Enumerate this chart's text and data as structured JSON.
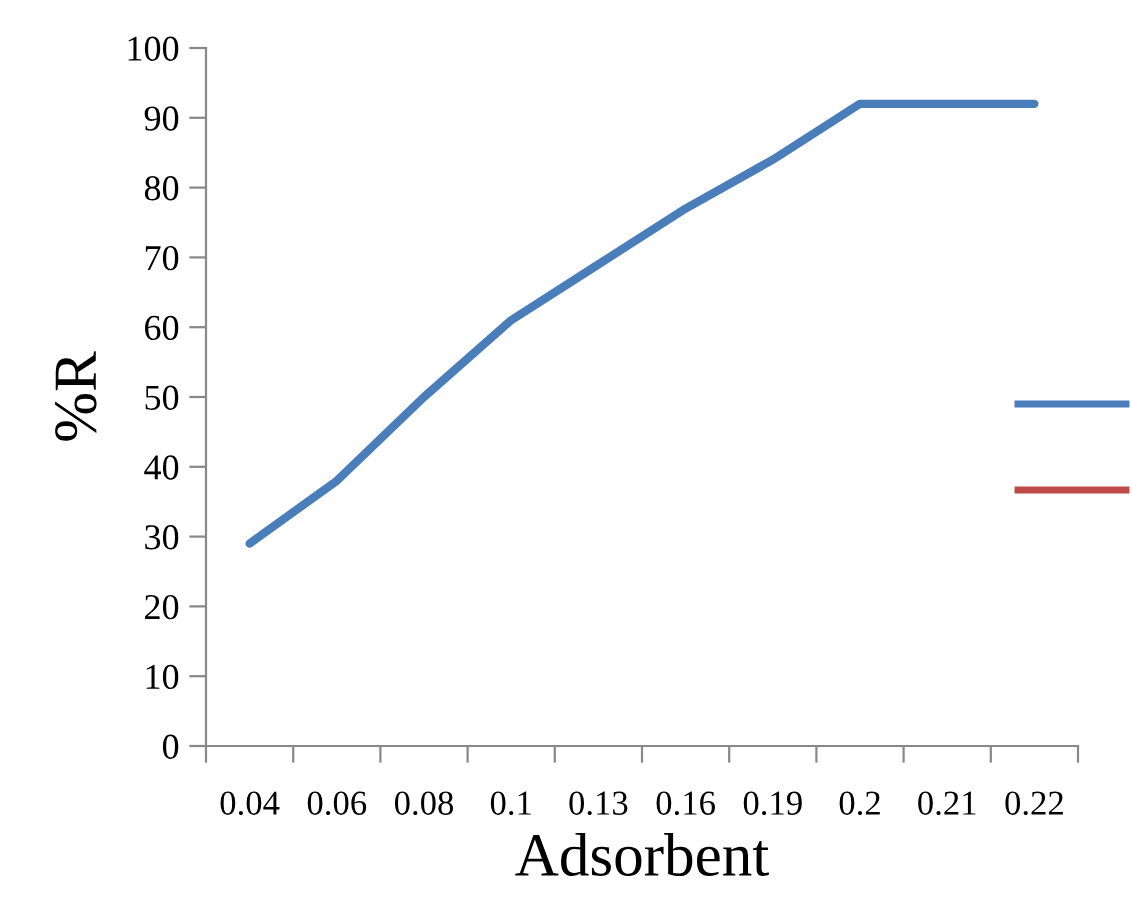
{
  "chart_data": {
    "type": "line",
    "xlabel": "Adsorbent",
    "ylabel": "%R",
    "categories": [
      "0.04",
      "0.06",
      "0.08",
      "0.1",
      "0.13",
      "0.16",
      "0.19",
      "0.2",
      "0.21",
      "0.22"
    ],
    "series": [
      {
        "color": "#4a7ebb",
        "values": [
          29,
          38,
          50,
          61,
          69,
          77,
          84,
          92,
          92,
          92
        ]
      },
      {
        "color": "#be4b48",
        "values": [
          null,
          null,
          null,
          null,
          null,
          null,
          null,
          null,
          null,
          null
        ]
      }
    ],
    "ylim": [
      0,
      100
    ],
    "yticks": [
      0,
      10,
      20,
      30,
      40,
      50,
      60,
      70,
      80,
      90,
      100
    ],
    "grid": false,
    "marker": "none",
    "line_style": "solid"
  }
}
